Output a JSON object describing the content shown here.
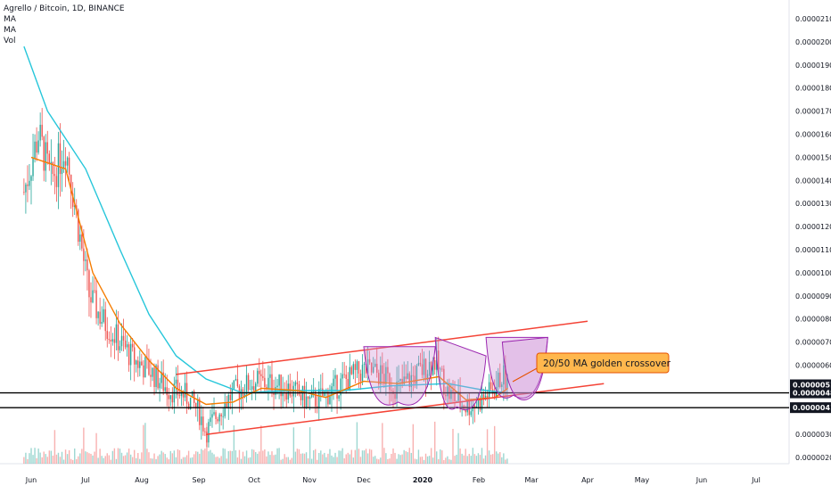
{
  "header": {
    "symbol_line": "Agrello / Bitcoin, 1D, BINANCE",
    "indicators": [
      "MA",
      "MA",
      "Vol"
    ]
  },
  "colors": {
    "up": "#26a69a",
    "down": "#ef5350",
    "ma_fast": "#f57c00",
    "ma_slow": "#26c6da",
    "channel": "#f44336",
    "horizontal": "#000000",
    "pattern_fill": "#ce93d8",
    "pattern_stroke": "#9c27b0",
    "callout_bg": "#ffb74d",
    "callout_border": "#e65100"
  },
  "annotation": {
    "callout_text": "20/50 MA golden crossover"
  },
  "chart_data": {
    "type": "candlestick",
    "title": "Agrello / Bitcoin, 1D, BINANCE",
    "x_labels": [
      "Jun",
      "Jul",
      "Aug",
      "Sep",
      "Oct",
      "Nov",
      "Dec",
      "2020",
      "Feb",
      "Mar",
      "Apr",
      "May",
      "Jun",
      "Jul"
    ],
    "y_ticks": [
      "0.00002100",
      "0.00002000",
      "0.00001900",
      "0.00001800",
      "0.00001700",
      "0.00001600",
      "0.00001500",
      "0.00001400",
      "0.00001300",
      "0.00001200",
      "0.00001100",
      "0.00001000",
      "0.00000900",
      "0.00000800",
      "0.00000700",
      "0.00000600",
      "0.00000515",
      "0.00000480",
      "0.00000416",
      "0.00000300",
      "0.00000200"
    ],
    "price_labels": [
      {
        "value": "0.00000515",
        "bg": "#131722"
      },
      {
        "value": "0.00000480",
        "bg": "#131722"
      },
      {
        "value": "0.00000416",
        "bg": "#131722"
      }
    ],
    "series_price_approx": [
      [
        "May 28",
        1.35
      ],
      [
        "Jun 05",
        1.6
      ],
      [
        "Jun 12",
        1.4
      ],
      [
        "Jun 20",
        1.55
      ],
      [
        "Jun 27",
        1.2
      ],
      [
        "Jul 03",
        0.9
      ],
      [
        "Jul 10",
        0.8
      ],
      [
        "Jul 20",
        0.7
      ],
      [
        "Jul 28",
        0.62
      ],
      [
        "Aug 05",
        0.58
      ],
      [
        "Aug 15",
        0.5
      ],
      [
        "Aug 25",
        0.47
      ],
      [
        "Sep 01",
        0.4
      ],
      [
        "Sep 05",
        0.31
      ],
      [
        "Sep 12",
        0.4
      ],
      [
        "Sep 20",
        0.48
      ],
      [
        "Oct 01",
        0.53
      ],
      [
        "Oct 10",
        0.52
      ],
      [
        "Oct 20",
        0.5
      ],
      [
        "Nov 01",
        0.44
      ],
      [
        "Nov 10",
        0.47
      ],
      [
        "Nov 20",
        0.53
      ],
      [
        "Dec 01",
        0.58
      ],
      [
        "Dec 10",
        0.56
      ],
      [
        "Dec 20",
        0.5
      ],
      [
        "Jan 01",
        0.58
      ],
      [
        "Jan 08",
        0.62
      ],
      [
        "Jan 15",
        0.48
      ],
      [
        "Jan 25",
        0.42
      ],
      [
        "Feb 01",
        0.44
      ],
      [
        "Feb 10",
        0.5
      ],
      [
        "Feb 14",
        0.56
      ],
      [
        "Feb 17",
        0.52
      ]
    ],
    "ma20_approx": [
      [
        "Jun 01",
        1.5
      ],
      [
        "Jun 20",
        1.45
      ],
      [
        "Jul 05",
        1.0
      ],
      [
        "Jul 20",
        0.78
      ],
      [
        "Aug 05",
        0.62
      ],
      [
        "Aug 20",
        0.5
      ],
      [
        "Sep 05",
        0.43
      ],
      [
        "Sep 20",
        0.44
      ],
      [
        "Oct 05",
        0.5
      ],
      [
        "Oct 25",
        0.49
      ],
      [
        "Nov 10",
        0.46
      ],
      [
        "Dec 01",
        0.53
      ],
      [
        "Dec 20",
        0.52
      ],
      [
        "Jan 10",
        0.55
      ],
      [
        "Jan 25",
        0.45
      ],
      [
        "Feb 10",
        0.46
      ],
      [
        "Feb 17",
        0.5
      ]
    ],
    "ma50_approx": [
      [
        "May 28",
        1.98
      ],
      [
        "Jun 10",
        1.7
      ],
      [
        "Jul 01",
        1.45
      ],
      [
        "Jul 20",
        1.1
      ],
      [
        "Aug 05",
        0.82
      ],
      [
        "Aug 20",
        0.64
      ],
      [
        "Sep 05",
        0.54
      ],
      [
        "Sep 25",
        0.48
      ],
      [
        "Oct 20",
        0.49
      ],
      [
        "Nov 20",
        0.49
      ],
      [
        "Dec 15",
        0.51
      ],
      [
        "Jan 15",
        0.52
      ],
      [
        "Feb 05",
        0.49
      ],
      [
        "Feb 17",
        0.48
      ]
    ],
    "channel_lines": [
      {
        "from": [
          "Aug 20",
          0.56
        ],
        "to": [
          "Apr 01",
          0.79
        ]
      },
      {
        "from": [
          "Sep 05",
          0.3
        ],
        "to": [
          "Apr 10",
          0.52
        ]
      }
    ],
    "horizontal_levels": [
      4.8e-06,
      4.16e-06
    ],
    "grid": false,
    "legend": "top-left"
  }
}
